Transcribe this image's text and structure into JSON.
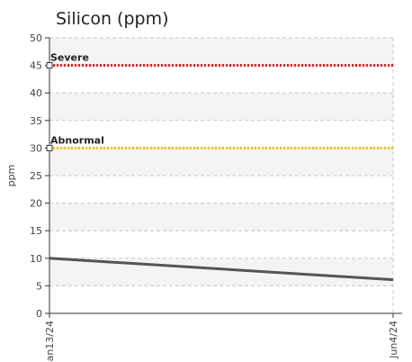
{
  "chart_data": {
    "type": "line",
    "title": "Silicon (ppm)",
    "ylabel": "ppm",
    "xlabel": "",
    "ylim": [
      0,
      50
    ],
    "y_ticks": [
      0,
      5,
      10,
      15,
      20,
      25,
      30,
      35,
      40,
      45,
      50
    ],
    "x_categories": [
      "an13/24",
      "Jun4/24"
    ],
    "series": [
      {
        "values": [
          10,
          6.1
        ],
        "color": "#555555"
      }
    ],
    "thresholds": [
      {
        "label": "Severe",
        "value": 45,
        "color": "#e8141c"
      },
      {
        "label": "Abnormal",
        "value": 30,
        "color": "#f2c200"
      }
    ],
    "grid": true,
    "legend": "none"
  }
}
